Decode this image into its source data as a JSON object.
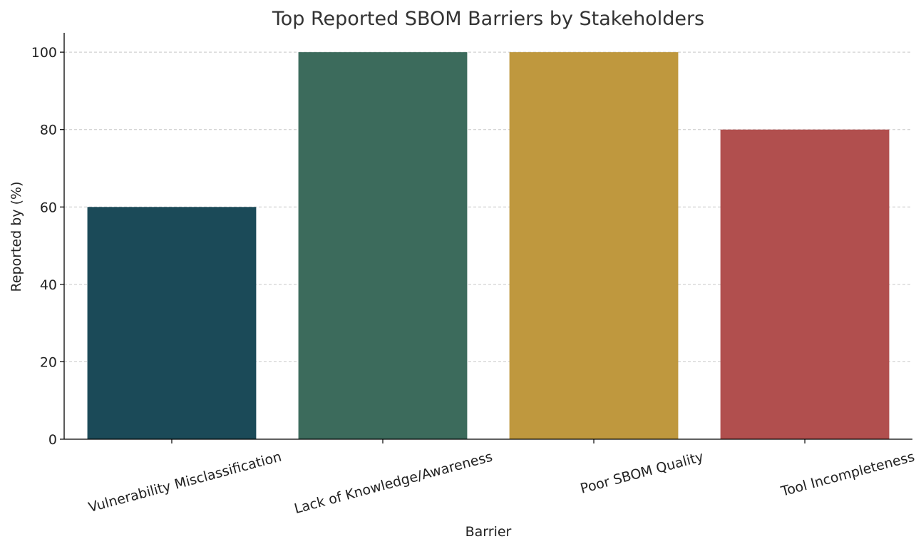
{
  "chart_data": {
    "type": "bar",
    "title": "Top Reported SBOM Barriers by Stakeholders",
    "xlabel": "Barrier",
    "ylabel": "Reported by (%)",
    "categories": [
      "Vulnerability Misclassification",
      "Lack of Knowledge/Awareness",
      "Poor SBOM Quality",
      "Tool Incompleteness"
    ],
    "values": [
      60,
      100,
      100,
      80
    ],
    "colors": [
      "#1b4a58",
      "#3c6b5c",
      "#bf983e",
      "#b14f4e"
    ],
    "ylim": [
      0,
      105
    ],
    "yticks": [
      0,
      20,
      40,
      60,
      80,
      100
    ],
    "grid": true,
    "tick_label_rotation_deg": -15
  }
}
